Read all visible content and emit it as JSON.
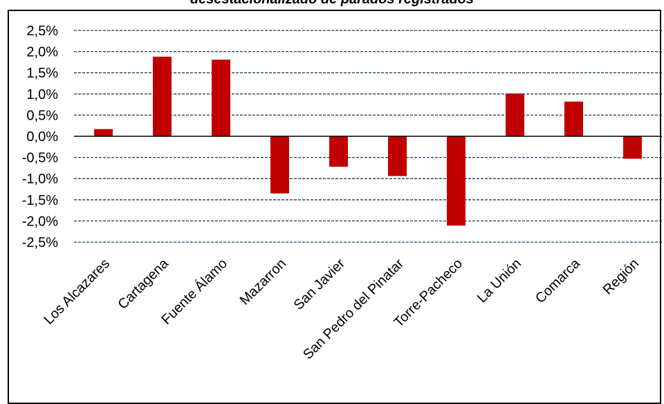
{
  "chart_data": {
    "type": "bar",
    "title": "desestacionalizado de parados registrados",
    "xlabel": "",
    "ylabel": "",
    "categories": [
      "Los Alcazares",
      "Cartagena",
      "Fuente Álamo",
      "Mazarron",
      "San Javier",
      "San Pedro del Pinatar",
      "Torre-Pacheco",
      "La Unión",
      "Comarca",
      "Región"
    ],
    "values": [
      0.17,
      1.88,
      1.81,
      -1.35,
      -0.72,
      -0.94,
      -2.11,
      1.01,
      0.82,
      -0.53
    ],
    "ylim": [
      -2.5,
      2.5
    ],
    "yticks": [
      2.5,
      2.0,
      1.5,
      1.0,
      0.5,
      0.0,
      -0.5,
      -1.0,
      -1.5,
      -2.0,
      -2.5
    ],
    "ytick_labels": [
      "2,5%",
      "2,0%",
      "1,5%",
      "1,0%",
      "0,5%",
      "0,0%",
      "-0,5%",
      "-1,0%",
      "-1,5%",
      "-2,0%",
      "-2,5%"
    ],
    "grid": true,
    "grid_style": "dashed",
    "bar_color": "#C00000",
    "gridline_color": "#1F3864"
  }
}
